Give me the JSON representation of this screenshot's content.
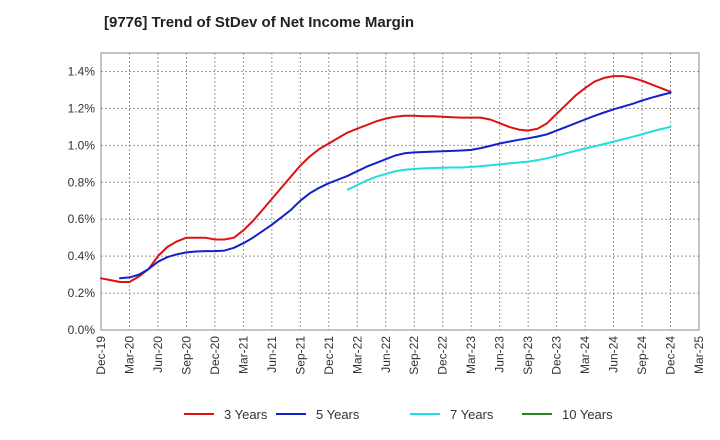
{
  "chart_data": {
    "type": "line",
    "title": "[9776]  Trend of StDev of Net Income Margin",
    "xlabel": "",
    "ylabel": "",
    "x_ticks": [
      "Dec-19",
      "Mar-20",
      "Jun-20",
      "Sep-20",
      "Dec-20",
      "Mar-21",
      "Jun-21",
      "Sep-21",
      "Dec-21",
      "Mar-22",
      "Jun-22",
      "Sep-22",
      "Dec-22",
      "Mar-23",
      "Jun-23",
      "Sep-23",
      "Dec-23",
      "Mar-24",
      "Jun-24",
      "Sep-24",
      "Dec-24",
      "Mar-25"
    ],
    "y_ticks": [
      "0.0%",
      "0.2%",
      "0.4%",
      "0.6%",
      "0.8%",
      "1.0%",
      "1.2%",
      "1.4%"
    ],
    "ylim": [
      0,
      1.5
    ],
    "y_unit": "%",
    "grid": true,
    "legend_position": "bottom",
    "series": [
      {
        "name": "3 Years",
        "color": "#dd1111",
        "points": [
          [
            "Dec-19",
            0.28
          ],
          [
            "Jan-20",
            0.27
          ],
          [
            "Feb-20",
            0.26
          ],
          [
            "Mar-20",
            0.26
          ],
          [
            "Apr-20",
            0.29
          ],
          [
            "May-20",
            0.33
          ],
          [
            "Jun-20",
            0.4
          ],
          [
            "Jul-20",
            0.45
          ],
          [
            "Aug-20",
            0.48
          ],
          [
            "Sep-20",
            0.5
          ],
          [
            "Oct-20",
            0.5
          ],
          [
            "Nov-20",
            0.5
          ],
          [
            "Dec-20",
            0.49
          ],
          [
            "Jan-21",
            0.49
          ],
          [
            "Feb-21",
            0.5
          ],
          [
            "Mar-21",
            0.54
          ],
          [
            "Apr-21",
            0.59
          ],
          [
            "May-21",
            0.65
          ],
          [
            "Jun-21",
            0.71
          ],
          [
            "Jul-21",
            0.77
          ],
          [
            "Aug-21",
            0.83
          ],
          [
            "Sep-21",
            0.89
          ],
          [
            "Oct-21",
            0.94
          ],
          [
            "Nov-21",
            0.98
          ],
          [
            "Dec-21",
            1.01
          ],
          [
            "Jan-22",
            1.04
          ],
          [
            "Feb-22",
            1.07
          ],
          [
            "Mar-22",
            1.09
          ],
          [
            "Apr-22",
            1.11
          ],
          [
            "May-22",
            1.13
          ],
          [
            "Jun-22",
            1.145
          ],
          [
            "Jul-22",
            1.155
          ],
          [
            "Aug-22",
            1.16
          ],
          [
            "Sep-22",
            1.16
          ],
          [
            "Oct-22",
            1.158
          ],
          [
            "Nov-22",
            1.157
          ],
          [
            "Dec-22",
            1.155
          ],
          [
            "Jan-23",
            1.152
          ],
          [
            "Feb-23",
            1.15
          ],
          [
            "Mar-23",
            1.15
          ],
          [
            "Apr-23",
            1.15
          ],
          [
            "May-23",
            1.14
          ],
          [
            "Jun-23",
            1.12
          ],
          [
            "Jul-23",
            1.1
          ],
          [
            "Aug-23",
            1.085
          ],
          [
            "Sep-23",
            1.08
          ],
          [
            "Oct-23",
            1.09
          ],
          [
            "Nov-23",
            1.12
          ],
          [
            "Dec-23",
            1.17
          ],
          [
            "Jan-24",
            1.22
          ],
          [
            "Feb-24",
            1.27
          ],
          [
            "Mar-24",
            1.31
          ],
          [
            "Apr-24",
            1.345
          ],
          [
            "May-24",
            1.365
          ],
          [
            "Jun-24",
            1.375
          ],
          [
            "Jul-24",
            1.375
          ],
          [
            "Aug-24",
            1.365
          ],
          [
            "Sep-24",
            1.35
          ],
          [
            "Oct-24",
            1.33
          ],
          [
            "Nov-24",
            1.31
          ],
          [
            "Dec-24",
            1.29
          ]
        ]
      },
      {
        "name": "5 Years",
        "color": "#1122cc",
        "points": [
          [
            "Feb-20",
            0.28
          ],
          [
            "Mar-20",
            0.285
          ],
          [
            "Apr-20",
            0.3
          ],
          [
            "May-20",
            0.33
          ],
          [
            "Jun-20",
            0.37
          ],
          [
            "Jul-20",
            0.395
          ],
          [
            "Aug-20",
            0.41
          ],
          [
            "Sep-20",
            0.42
          ],
          [
            "Oct-20",
            0.425
          ],
          [
            "Nov-20",
            0.427
          ],
          [
            "Dec-20",
            0.427
          ],
          [
            "Jan-21",
            0.43
          ],
          [
            "Feb-21",
            0.445
          ],
          [
            "Mar-21",
            0.47
          ],
          [
            "Apr-21",
            0.5
          ],
          [
            "May-21",
            0.535
          ],
          [
            "Jun-21",
            0.57
          ],
          [
            "Jul-21",
            0.61
          ],
          [
            "Aug-21",
            0.65
          ],
          [
            "Sep-21",
            0.7
          ],
          [
            "Oct-21",
            0.74
          ],
          [
            "Nov-21",
            0.77
          ],
          [
            "Dec-21",
            0.795
          ],
          [
            "Jan-22",
            0.815
          ],
          [
            "Feb-22",
            0.835
          ],
          [
            "Mar-22",
            0.86
          ],
          [
            "Apr-22",
            0.885
          ],
          [
            "May-22",
            0.905
          ],
          [
            "Jun-22",
            0.925
          ],
          [
            "Jul-22",
            0.945
          ],
          [
            "Aug-22",
            0.957
          ],
          [
            "Sep-22",
            0.962
          ],
          [
            "Oct-22",
            0.964
          ],
          [
            "Nov-22",
            0.966
          ],
          [
            "Dec-22",
            0.968
          ],
          [
            "Jan-23",
            0.97
          ],
          [
            "Feb-23",
            0.972
          ],
          [
            "Mar-23",
            0.975
          ],
          [
            "Apr-23",
            0.985
          ],
          [
            "May-23",
            0.997
          ],
          [
            "Jun-23",
            1.01
          ],
          [
            "Jul-23",
            1.02
          ],
          [
            "Aug-23",
            1.03
          ],
          [
            "Sep-23",
            1.038
          ],
          [
            "Oct-23",
            1.048
          ],
          [
            "Nov-23",
            1.06
          ],
          [
            "Dec-23",
            1.08
          ],
          [
            "Jan-24",
            1.1
          ],
          [
            "Feb-24",
            1.12
          ],
          [
            "Mar-24",
            1.14
          ],
          [
            "Apr-24",
            1.16
          ],
          [
            "May-24",
            1.178
          ],
          [
            "Jun-24",
            1.195
          ],
          [
            "Jul-24",
            1.21
          ],
          [
            "Aug-24",
            1.225
          ],
          [
            "Sep-24",
            1.242
          ],
          [
            "Oct-24",
            1.258
          ],
          [
            "Nov-24",
            1.272
          ],
          [
            "Dec-24",
            1.285
          ]
        ]
      },
      {
        "name": "7 Years",
        "color": "#22dddd",
        "points": [
          [
            "Feb-22",
            0.76
          ],
          [
            "Mar-22",
            0.785
          ],
          [
            "Apr-22",
            0.81
          ],
          [
            "May-22",
            0.83
          ],
          [
            "Jun-22",
            0.845
          ],
          [
            "Jul-22",
            0.86
          ],
          [
            "Aug-22",
            0.868
          ],
          [
            "Sep-22",
            0.872
          ],
          [
            "Oct-22",
            0.875
          ],
          [
            "Nov-22",
            0.877
          ],
          [
            "Dec-22",
            0.879
          ],
          [
            "Jan-23",
            0.88
          ],
          [
            "Feb-23",
            0.88
          ],
          [
            "Mar-23",
            0.883
          ],
          [
            "Apr-23",
            0.887
          ],
          [
            "May-23",
            0.892
          ],
          [
            "Jun-23",
            0.897
          ],
          [
            "Jul-23",
            0.902
          ],
          [
            "Aug-23",
            0.907
          ],
          [
            "Sep-23",
            0.912
          ],
          [
            "Oct-23",
            0.92
          ],
          [
            "Nov-23",
            0.93
          ],
          [
            "Dec-23",
            0.943
          ],
          [
            "Jan-24",
            0.957
          ],
          [
            "Feb-24",
            0.97
          ],
          [
            "Mar-24",
            0.983
          ],
          [
            "Apr-24",
            0.995
          ],
          [
            "May-24",
            1.007
          ],
          [
            "Jun-24",
            1.02
          ],
          [
            "Jul-24",
            1.033
          ],
          [
            "Aug-24",
            1.046
          ],
          [
            "Sep-24",
            1.06
          ],
          [
            "Oct-24",
            1.075
          ],
          [
            "Nov-24",
            1.088
          ],
          [
            "Dec-24",
            1.1
          ]
        ]
      },
      {
        "name": "10 Years",
        "color": "#228822",
        "points": []
      }
    ]
  }
}
